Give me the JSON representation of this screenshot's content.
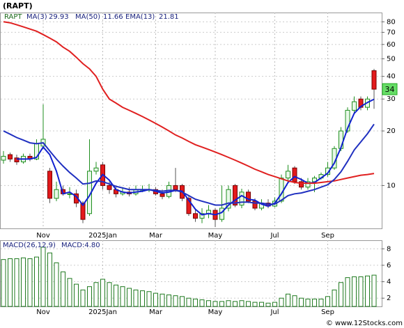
{
  "title": "(RAPT)",
  "footer": "© www.12Stocks.com",
  "chart_data": [
    {
      "type": "candlestick",
      "ticker": "RAPT",
      "categories": [
        null,
        null,
        null,
        null,
        null,
        null,
        "Nov",
        null,
        null,
        null,
        null,
        null,
        null,
        null,
        null,
        "2025Jan",
        null,
        null,
        null,
        null,
        null,
        null,
        null,
        "Mar",
        null,
        null,
        null,
        null,
        null,
        null,
        null,
        null,
        "May",
        null,
        null,
        null,
        null,
        null,
        null,
        null,
        null,
        "Jul",
        null,
        null,
        null,
        null,
        null,
        null,
        null,
        "Sep",
        null,
        null,
        null,
        null,
        null,
        null,
        null
      ],
      "open": [
        13.8,
        14.8,
        14.2,
        13.5,
        14.5,
        14,
        16.5,
        12,
        8.5,
        9.5,
        9,
        9,
        8,
        7,
        12,
        13,
        10,
        9.5,
        9,
        9.2,
        9,
        9.5,
        9.5,
        9.5,
        9,
        8.7,
        10,
        10,
        8.5,
        7,
        6.6,
        7,
        7.3,
        6.5,
        7.5,
        10,
        7.8,
        9.2,
        8.2,
        7.5,
        8,
        7.7,
        8.2,
        11,
        12.5,
        10.5,
        9.8,
        10.5,
        11,
        11.5,
        12.5,
        16,
        20,
        26,
        30,
        27,
        43
      ],
      "high": [
        15.5,
        15.2,
        14.8,
        15,
        15,
        18,
        28,
        12.5,
        10.5,
        10,
        9.8,
        9.5,
        8.2,
        18,
        13.5,
        13.5,
        10.5,
        9.8,
        9.8,
        9.8,
        10,
        10,
        10.2,
        9.8,
        9.5,
        10.5,
        12.5,
        10.2,
        8.8,
        7.5,
        7.5,
        7.8,
        7.5,
        10,
        10,
        10.2,
        9.6,
        9.5,
        8.5,
        8.4,
        8.4,
        8.6,
        11.5,
        13,
        12.8,
        11,
        11,
        11.3,
        11.8,
        13.5,
        16.5,
        21,
        27,
        31,
        31,
        31,
        44
      ],
      "low": [
        13.2,
        13.5,
        13,
        13.2,
        13.6,
        13.8,
        16,
        8,
        8.2,
        8.8,
        8.5,
        7.6,
        6.2,
        6.8,
        11.5,
        9.5,
        9,
        8.6,
        8.8,
        8.7,
        8.8,
        9.2,
        9.2,
        8.8,
        8.4,
        8.5,
        9.2,
        8.2,
        6.8,
        6.3,
        6.2,
        6.6,
        5.9,
        6.3,
        7.2,
        7.6,
        7.5,
        8,
        7.3,
        7.3,
        7.5,
        7.6,
        8,
        10.5,
        10.2,
        9.5,
        9.5,
        9.2,
        10.8,
        11.2,
        12.2,
        15.5,
        19.5,
        25,
        26,
        26,
        26.5
      ],
      "close": [
        14.5,
        14,
        13.5,
        14.5,
        14,
        17,
        18,
        8.5,
        9.5,
        9,
        9,
        8,
        6.5,
        12,
        12.5,
        10,
        9.5,
        9,
        9.2,
        9,
        9.5,
        9.5,
        9.5,
        9,
        8.7,
        10,
        9.5,
        8.5,
        7,
        6.6,
        7,
        7.3,
        6.5,
        7.5,
        9.5,
        7.8,
        9.2,
        8.2,
        7.5,
        8,
        7.7,
        8.2,
        11,
        12,
        10.5,
        9.8,
        10.5,
        11,
        11.5,
        12.5,
        16,
        20,
        26,
        29,
        27,
        30,
        34
      ],
      "up_color": "#1f8f1f",
      "down_color": "#e31a1c",
      "series": [
        {
          "name": "MA(3)",
          "color": "#1020d0",
          "values": [
            null,
            null,
            14,
            14,
            14,
            14.3,
            16.3,
            14.8,
            12,
            9,
            9.2,
            8.7,
            7.8,
            8.8,
            10.3,
            11.5,
            10.7,
            9.5,
            9.2,
            9.1,
            9.2,
            9.3,
            9.5,
            9.3,
            9.1,
            9.2,
            9.4,
            9.3,
            8.3,
            7.4,
            6.9,
            7,
            6.9,
            7.1,
            7.8,
            8.3,
            8.8,
            8.4,
            8.3,
            7.9,
            7.7,
            8,
            9,
            10.4,
            11.2,
            10.8,
            10.3,
            10.4,
            11,
            11.7,
            13.3,
            16.2,
            20.7,
            25,
            27.3,
            28.7,
            29.93
          ]
        },
        {
          "name": "MA(50)",
          "color": "#e02020",
          "values": [
            80,
            79,
            77,
            75,
            73,
            71,
            68,
            65,
            62,
            58,
            55,
            51,
            47,
            44,
            40,
            34,
            30,
            28.5,
            27,
            26,
            25,
            24,
            23,
            22,
            21,
            20,
            19,
            18.3,
            17.5,
            16.8,
            16.3,
            15.8,
            15.3,
            14.8,
            14.3,
            13.8,
            13.3,
            12.8,
            12.3,
            11.9,
            11.5,
            11.2,
            10.9,
            10.6,
            10.4,
            10.3,
            10.3,
            10.3,
            10.4,
            10.5,
            10.6,
            10.8,
            11,
            11.2,
            11.4,
            11.5,
            11.66
          ]
        },
        {
          "name": "EMA(13)",
          "color": "#2030c0",
          "values": [
            20,
            19.2,
            18.4,
            17.8,
            17.2,
            17,
            17.2,
            15.5,
            14,
            12.8,
            11.8,
            11,
            10.2,
            10.3,
            10.6,
            10.5,
            10.2,
            9.9,
            9.7,
            9.5,
            9.5,
            9.5,
            9.5,
            9.4,
            9.3,
            9.4,
            9.4,
            9.2,
            8.8,
            8.4,
            8.2,
            8,
            7.8,
            7.8,
            8,
            8,
            8.1,
            8.1,
            8,
            8,
            7.9,
            7.9,
            8.3,
            8.8,
            9,
            9.1,
            9.3,
            9.5,
            9.8,
            10.1,
            10.8,
            11.9,
            13.6,
            15.7,
            17.4,
            19.3,
            21.81
          ]
        }
      ],
      "ylim": [
        5.8,
        90
      ],
      "yticks": [
        10,
        20,
        30,
        40,
        50,
        60,
        70,
        80
      ],
      "log_scale": true,
      "grid": true,
      "badge_color": "#66dd66"
    },
    {
      "type": "bar",
      "legend": [
        "MACD(26,12,9)",
        "MACD:4.80"
      ],
      "values": [
        6.7,
        6.8,
        6.8,
        6.9,
        6.8,
        7,
        8.2,
        7.5,
        6.3,
        5.2,
        4.4,
        3.7,
        3,
        3.4,
        3.9,
        4.3,
        3.9,
        3.6,
        3.4,
        3.2,
        3,
        2.9,
        2.8,
        2.6,
        2.5,
        2.4,
        2.3,
        2.2,
        2,
        1.9,
        1.8,
        1.7,
        1.6,
        1.6,
        1.7,
        1.6,
        1.7,
        1.6,
        1.5,
        1.5,
        1.4,
        1.5,
        2,
        2.5,
        2.3,
        2,
        1.9,
        1.9,
        1.9,
        2.2,
        3,
        3.9,
        4.5,
        4.6,
        4.6,
        4.7,
        4.8
      ],
      "color": "#1f7a1f",
      "ylim": [
        1,
        9.04
      ],
      "yticks": [
        2,
        4,
        6,
        8
      ],
      "grid": true
    }
  ]
}
